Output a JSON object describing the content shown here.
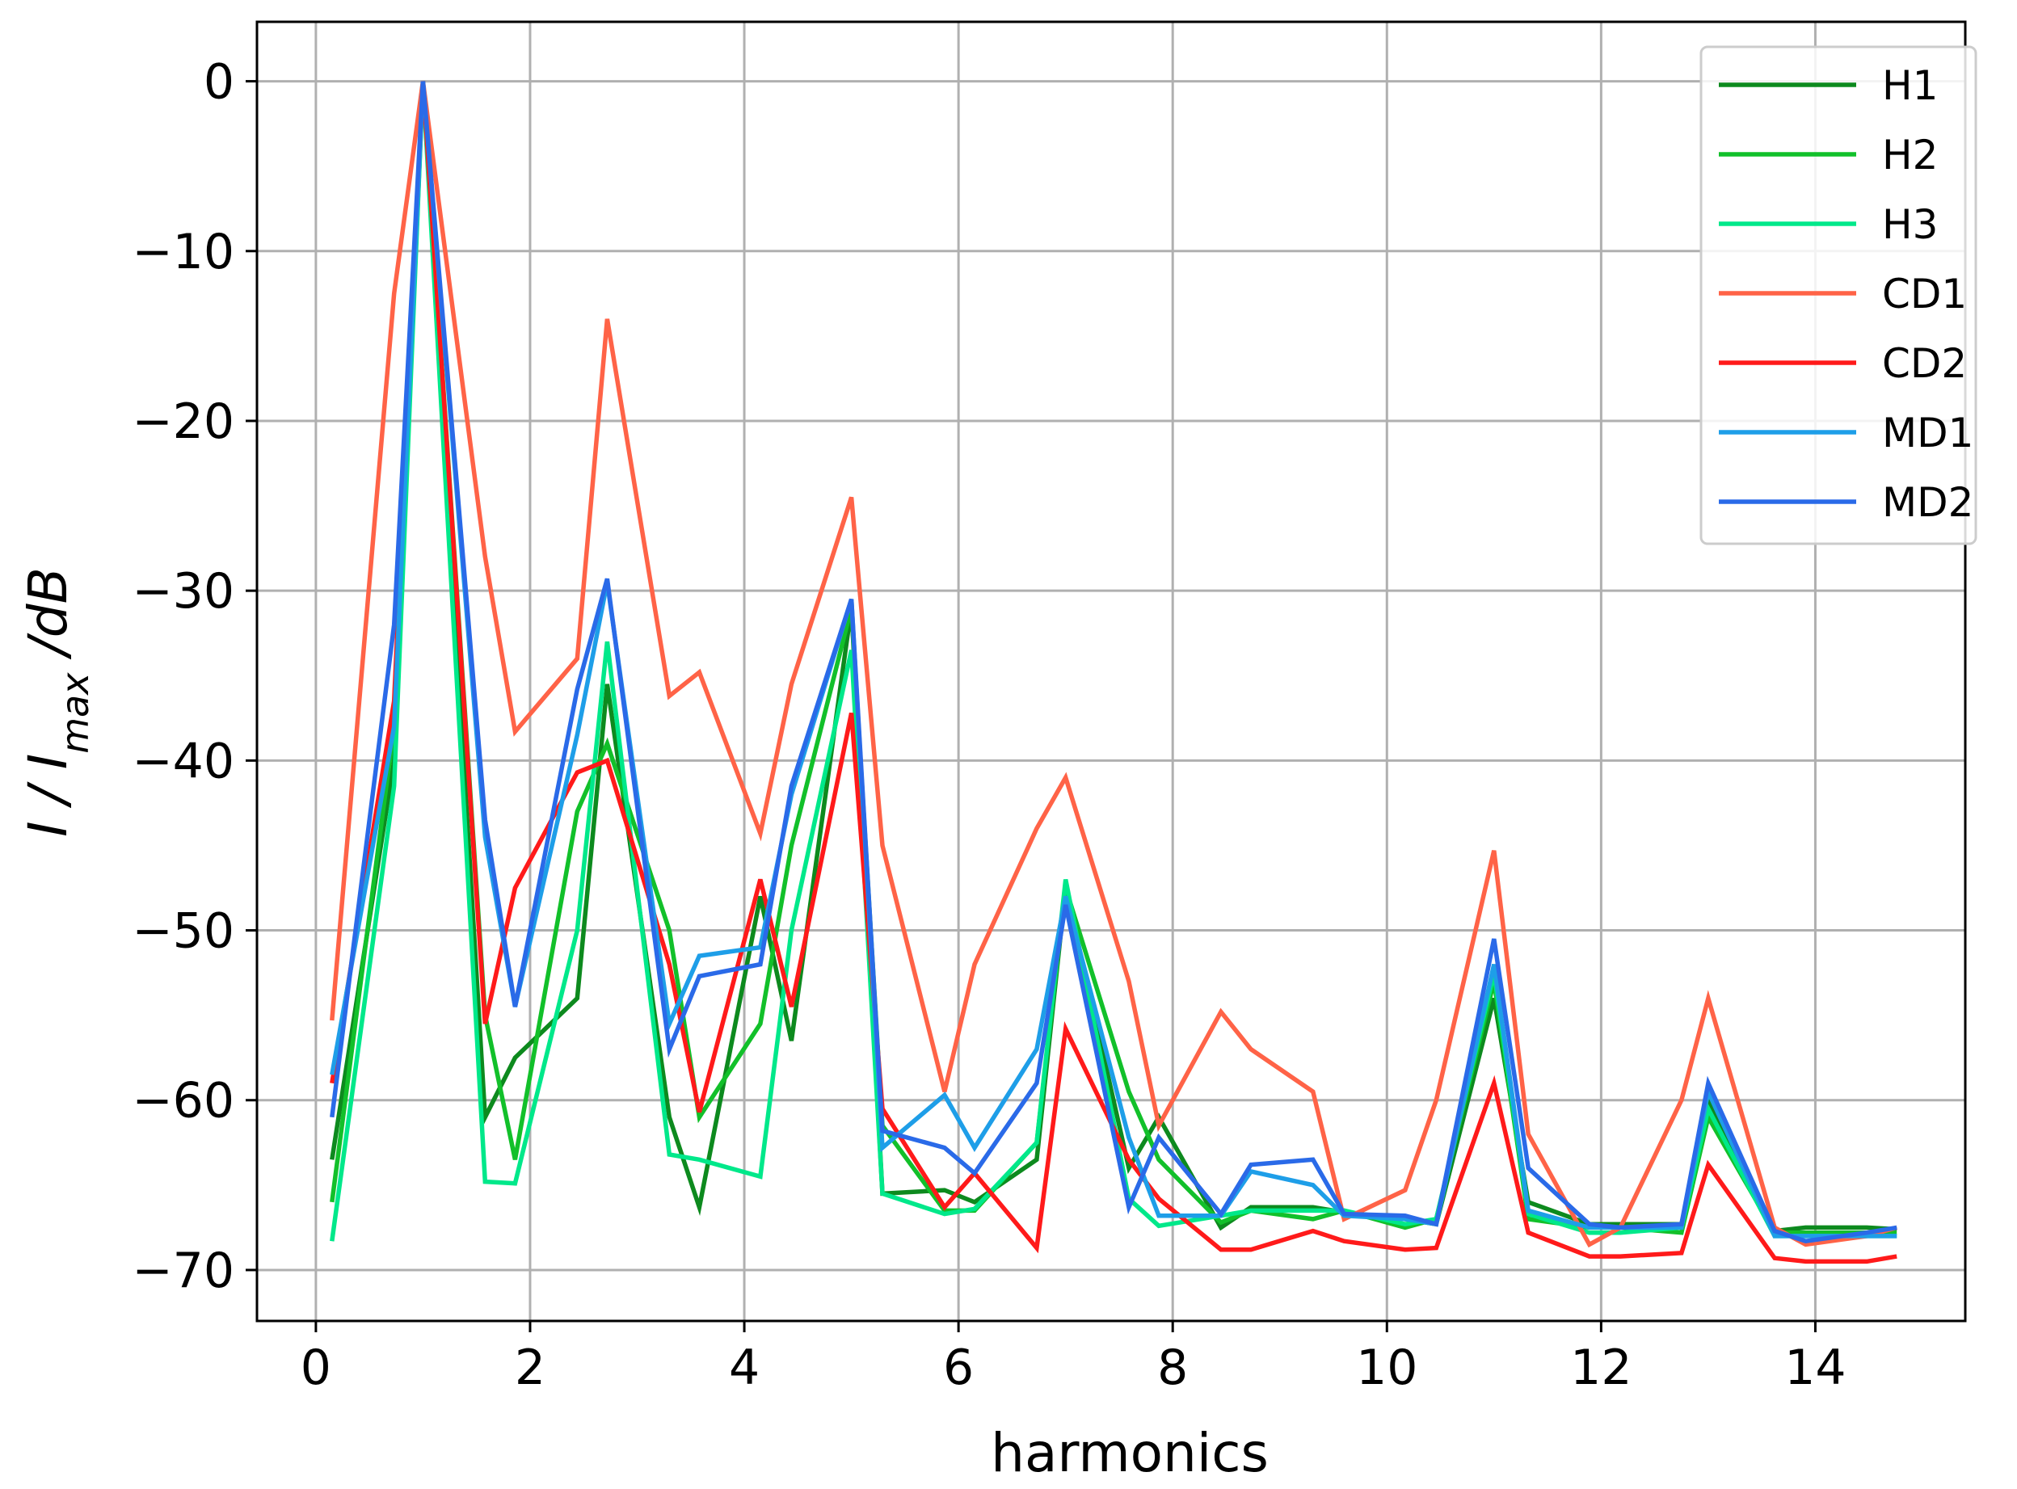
{
  "chart_data": {
    "type": "line",
    "xlabel": "harmonics",
    "ylabel": "I / I_max / dB",
    "ylabel_parts": {
      "main": "I / I",
      "sub": "max",
      "unit": " /dB"
    },
    "xlim": [
      -0.55,
      15.4
    ],
    "ylim": [
      -73,
      3.5
    ],
    "xticks": [
      0,
      2,
      4,
      6,
      8,
      10,
      12,
      14
    ],
    "xtick_labels": [
      "0",
      "2",
      "4",
      "6",
      "8",
      "10",
      "12",
      "14"
    ],
    "yticks": [
      0,
      -10,
      -20,
      -30,
      -40,
      -50,
      -60,
      -70
    ],
    "ytick_labels": [
      "0",
      "−10",
      "−20",
      "−30",
      "−40",
      "−50",
      "−60",
      "−70"
    ],
    "grid": true,
    "legend_position": "top-right",
    "x": [
      0.15,
      0.73,
      1.0,
      1.58,
      1.86,
      2.44,
      2.72,
      3.3,
      3.58,
      4.15,
      4.44,
      5.0,
      5.29,
      5.87,
      6.15,
      6.73,
      7.0,
      7.59,
      7.87,
      8.45,
      8.73,
      9.31,
      9.6,
      10.17,
      10.46,
      11.0,
      11.32,
      11.89,
      12.18,
      12.75,
      13.0,
      13.62,
      13.91,
      14.48,
      14.76
    ],
    "series": [
      {
        "name": "H1",
        "color": "#0d8a1e",
        "values": [
          -63.5,
          -40,
          0,
          -61,
          -57.5,
          -54,
          -35.5,
          -61,
          -66.3,
          -48,
          -56.5,
          -31,
          -65.5,
          -65.3,
          -66,
          -63.5,
          -47.5,
          -64,
          -61,
          -67.5,
          -66.3,
          -66.3,
          -66.6,
          -67,
          -67.3,
          -54,
          -66,
          -67.3,
          -67.3,
          -67.3,
          -60,
          -67.7,
          -67.5,
          -67.5,
          -67.6
        ]
      },
      {
        "name": "H2",
        "color": "#12c02a",
        "values": [
          -66,
          -38,
          0,
          -55,
          -63.5,
          -43,
          -39,
          -50,
          -61,
          -55.5,
          -45,
          -31,
          -61.5,
          -66.5,
          -66.5,
          -62.5,
          -47.5,
          -59.5,
          -63.5,
          -67.2,
          -66.5,
          -67,
          -66.5,
          -67.5,
          -67,
          -53,
          -67,
          -67.5,
          -67.5,
          -67.8,
          -61,
          -67.8,
          -67.8,
          -67.8,
          -67.8
        ]
      },
      {
        "name": "H3",
        "color": "#00e88a",
        "values": [
          -68.3,
          -41.5,
          0,
          -64.8,
          -64.9,
          -50,
          -33,
          -63.2,
          -63.5,
          -64.5,
          -50,
          -33.5,
          -65.5,
          -66.7,
          -66.4,
          -62.5,
          -47,
          -65.8,
          -67.4,
          -66.8,
          -66.5,
          -66.5,
          -66.5,
          -67.3,
          -67,
          -52.5,
          -66.7,
          -67.8,
          -67.8,
          -67.5,
          -60.5,
          -68,
          -68,
          -68,
          -68
        ]
      },
      {
        "name": "CD1",
        "color": "#ff6347",
        "values": [
          -55.3,
          -12.5,
          0,
          -28,
          -38.3,
          -34,
          -14,
          -36.2,
          -34.8,
          -44.3,
          -35.5,
          -24.5,
          -45,
          -59.5,
          -52,
          -44,
          -41,
          -53,
          -61.5,
          -54.8,
          -57,
          -59.5,
          -67,
          -65.3,
          -60,
          -45.3,
          -62,
          -68.5,
          -67.5,
          -60,
          -54,
          -67.5,
          -68.5,
          -68,
          -67.5
        ]
      },
      {
        "name": "CD2",
        "color": "#ff1a1a",
        "values": [
          -59,
          -36.5,
          0,
          -55.5,
          -47.5,
          -40.7,
          -40,
          -52,
          -60.7,
          -47,
          -54.5,
          -37.2,
          -60.5,
          -66.3,
          -64.3,
          -68.7,
          -55.8,
          -63.5,
          -65.8,
          -68.8,
          -68.8,
          -67.7,
          -68.3,
          -68.8,
          -68.7,
          -59,
          -67.8,
          -69.2,
          -69.2,
          -69,
          -63.8,
          -69.3,
          -69.5,
          -69.5,
          -69.2
        ]
      },
      {
        "name": "MD1",
        "color": "#1e9ee8",
        "values": [
          -58.5,
          -38,
          0,
          -44.5,
          -54.5,
          -38.5,
          -29.5,
          -55.5,
          -51.5,
          -51,
          -42,
          -30.5,
          -62.8,
          -59.7,
          -62.8,
          -57,
          -48,
          -62.2,
          -66.8,
          -66.8,
          -64.2,
          -65,
          -66.8,
          -67,
          -67.3,
          -52,
          -66.5,
          -67.5,
          -67.5,
          -67.5,
          -59.5,
          -68,
          -68,
          -68,
          -68
        ]
      },
      {
        "name": "MD2",
        "color": "#2a6ae8",
        "values": [
          -61,
          -32,
          0,
          -43.5,
          -54.5,
          -35.8,
          -29.3,
          -57,
          -52.7,
          -52,
          -41.5,
          -30.5,
          -61.8,
          -62.8,
          -64.3,
          -59,
          -48.5,
          -66.3,
          -62.2,
          -66.7,
          -63.8,
          -63.5,
          -66.7,
          -66.8,
          -67.3,
          -50.5,
          -64,
          -67.3,
          -67.5,
          -67.3,
          -59,
          -67.7,
          -68.3,
          -67.8,
          -67.5
        ]
      }
    ]
  }
}
